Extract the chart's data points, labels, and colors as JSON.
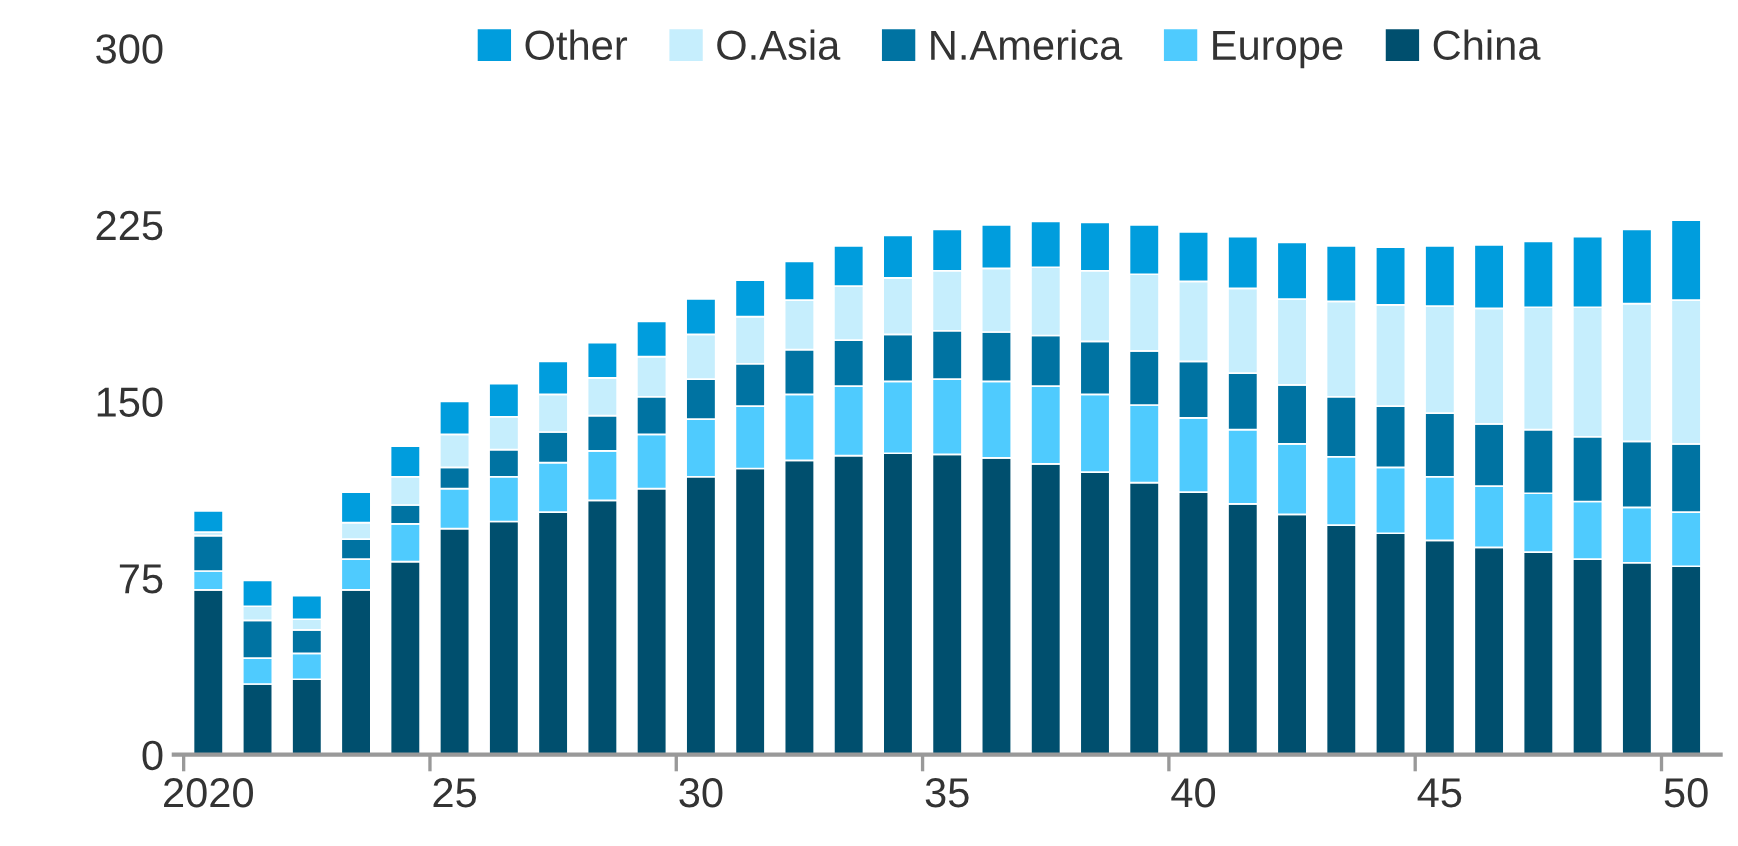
{
  "chart_data": {
    "type": "bar",
    "stacked": true,
    "categories": [
      "2020",
      null,
      null,
      null,
      null,
      "25",
      null,
      null,
      null,
      null,
      "30",
      null,
      null,
      null,
      null,
      "35",
      null,
      null,
      null,
      null,
      "40",
      null,
      null,
      null,
      null,
      "45",
      null,
      null,
      null,
      null,
      "50"
    ],
    "series": [
      {
        "name": "China",
        "color": "#004f6e",
        "values": [
          70,
          30,
          32,
          70,
          82,
          96,
          99,
          103,
          108,
          113,
          118,
          121.5,
          125,
          127,
          128,
          127.5,
          126,
          123.5,
          120,
          115.5,
          111.5,
          106.5,
          102,
          97.5,
          94,
          91,
          88,
          86,
          83,
          81.5,
          80
        ]
      },
      {
        "name": "Europe",
        "color": "#4fcbfe",
        "values": [
          8,
          11,
          11,
          13,
          16,
          17,
          19,
          21,
          21,
          23,
          24.5,
          26.5,
          28,
          29.5,
          30.5,
          32,
          32.5,
          33,
          33,
          33,
          31.5,
          31.5,
          30,
          29,
          28,
          27,
          26,
          25,
          24.5,
          23.5,
          23
        ]
      },
      {
        "name": "N.America",
        "color": "#0073a2",
        "values": [
          15,
          16,
          10,
          8.5,
          8,
          9,
          11.5,
          13,
          15,
          16,
          17,
          18,
          19,
          19.5,
          20,
          20.5,
          21,
          21.5,
          22.5,
          23,
          24,
          24,
          25,
          25.5,
          26,
          27,
          26.5,
          27,
          27.5,
          28,
          29
        ]
      },
      {
        "name": "O.Asia",
        "color": "#c6eefd",
        "values": [
          1.5,
          6,
          4.5,
          7,
          12,
          14,
          14,
          16,
          16,
          17,
          19,
          20,
          21,
          23,
          24,
          25.5,
          27,
          29,
          30,
          32.5,
          34,
          36,
          36.5,
          40.5,
          43,
          45.5,
          49,
          52,
          55,
          58.5,
          61
        ]
      },
      {
        "name": "Other",
        "color": "#009ddd",
        "values": [
          9,
          11,
          10,
          13,
          13,
          14,
          14,
          14,
          15,
          15,
          15,
          15.5,
          16.5,
          17,
          18,
          17.5,
          18.5,
          19.5,
          20.5,
          21,
          21,
          22,
          24,
          23.5,
          24.5,
          25.5,
          27,
          28,
          30,
          31.5,
          34
        ]
      }
    ],
    "ylim": [
      0,
      300
    ],
    "yticks": [
      0,
      75,
      150,
      225,
      300
    ],
    "grid": false,
    "legend": "top"
  }
}
